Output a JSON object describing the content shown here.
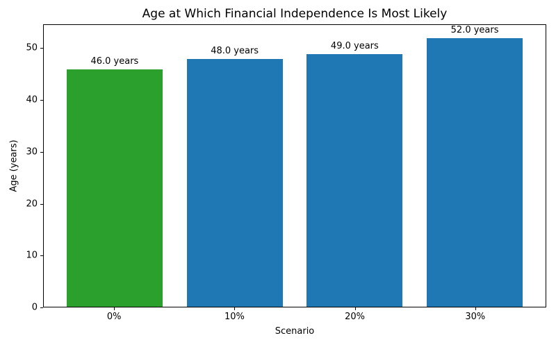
{
  "chart_data": {
    "type": "bar",
    "title": "Age at Which Financial Independence Is Most Likely",
    "xlabel": "Scenario",
    "ylabel": "Age (years)",
    "categories": [
      "0%",
      "10%",
      "20%",
      "30%"
    ],
    "values": [
      46.0,
      48.0,
      49.0,
      52.0
    ],
    "bar_labels": [
      "46.0 years",
      "48.0 years",
      "49.0 years",
      "52.0 years"
    ],
    "bar_colors": [
      "#2ca02c",
      "#1f77b4",
      "#1f77b4",
      "#1f77b4"
    ],
    "yticks": [
      0,
      10,
      20,
      30,
      40,
      50
    ],
    "ylim": [
      0,
      54.6
    ],
    "xlim": [
      -0.59,
      3.59
    ],
    "bar_width": 0.8,
    "grid": false,
    "legend": null,
    "axis_color": "#000000",
    "background_color": "#ffffff"
  }
}
